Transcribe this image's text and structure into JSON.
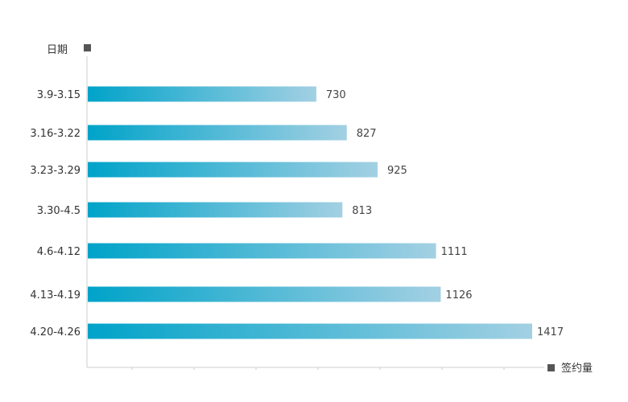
{
  "chart_data": {
    "type": "bar",
    "orientation": "horizontal",
    "categories": [
      "3.9-3.15",
      "3.16-3.22",
      "3.23-3.29",
      "3.30-4.5",
      "4.6-4.12",
      "4.13-4.19",
      "4.20-4.26"
    ],
    "values": [
      730,
      827,
      925,
      813,
      1111,
      1126,
      1417
    ],
    "ylabel": "日期",
    "xlabel": "签约量",
    "xlim": [
      0,
      1417
    ],
    "grid": false,
    "colors": {
      "bar_start": "#00a3c9",
      "bar_end": "#a3d0e3",
      "axis": "#cccccc",
      "marker": "#555555"
    }
  }
}
